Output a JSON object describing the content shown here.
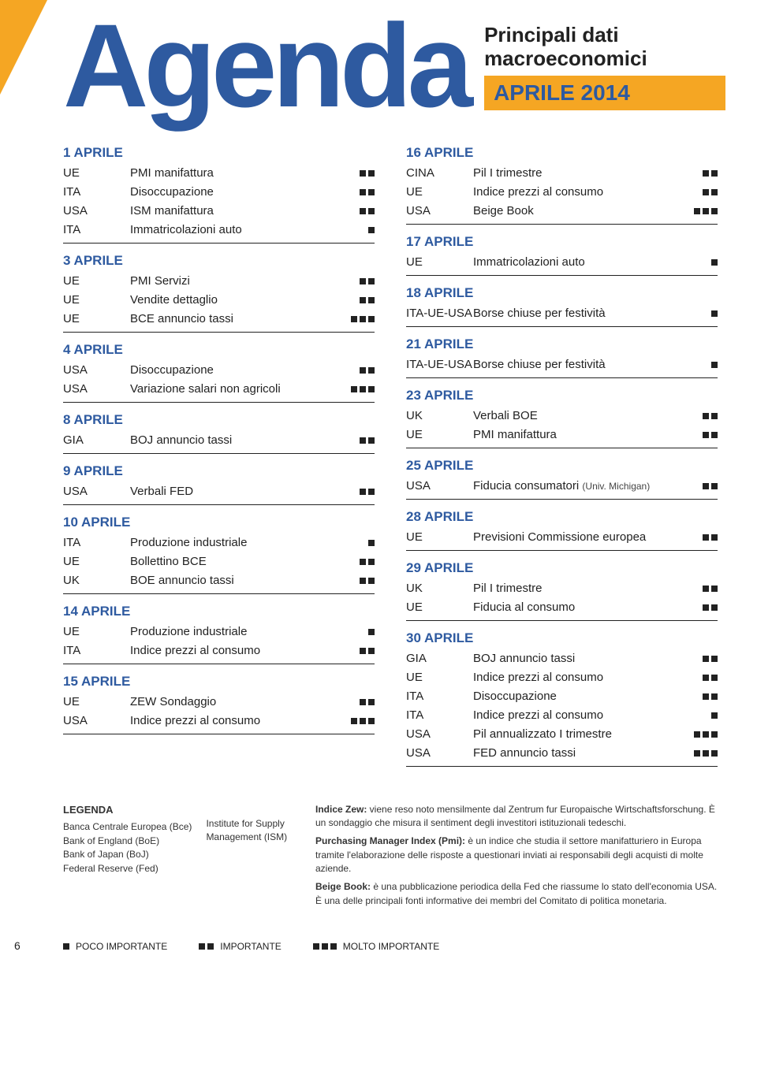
{
  "header": {
    "title": "Agenda",
    "subtitle": "Principali dati macroeconomici",
    "month": "APRILE 2014"
  },
  "colors": {
    "accent": "#f5a623",
    "primary": "#2e5aa0",
    "text": "#222222",
    "square": "#222222",
    "bg": "#ffffff"
  },
  "columns": [
    [
      {
        "date": "1 APRILE",
        "items": [
          {
            "country": "UE",
            "event": "PMI manifattura",
            "importance": 2
          },
          {
            "country": "ITA",
            "event": "Disoccupazione",
            "importance": 2
          },
          {
            "country": "USA",
            "event": "ISM manifattura",
            "importance": 2
          },
          {
            "country": "ITA",
            "event": "Immatricolazioni auto",
            "importance": 1
          }
        ]
      },
      {
        "date": "3 APRILE",
        "items": [
          {
            "country": "UE",
            "event": "PMI Servizi",
            "importance": 2
          },
          {
            "country": "UE",
            "event": "Vendite dettaglio",
            "importance": 2
          },
          {
            "country": "UE",
            "event": "BCE annuncio tassi",
            "importance": 3
          }
        ]
      },
      {
        "date": "4 APRILE",
        "items": [
          {
            "country": "USA",
            "event": "Disoccupazione",
            "importance": 2
          },
          {
            "country": "USA",
            "event": "Variazione salari non agricoli",
            "importance": 3
          }
        ]
      },
      {
        "date": "8 APRILE",
        "items": [
          {
            "country": "GIA",
            "event": "BOJ annuncio tassi",
            "importance": 2
          }
        ]
      },
      {
        "date": "9 APRILE",
        "items": [
          {
            "country": "USA",
            "event": "Verbali FED",
            "importance": 2
          }
        ]
      },
      {
        "date": "10 APRILE",
        "items": [
          {
            "country": "ITA",
            "event": "Produzione industriale",
            "importance": 1
          },
          {
            "country": "UE",
            "event": "Bollettino BCE",
            "importance": 2
          },
          {
            "country": "UK",
            "event": "BOE annuncio tassi",
            "importance": 2
          }
        ]
      },
      {
        "date": "14 APRILE",
        "items": [
          {
            "country": "UE",
            "event": "Produzione industriale",
            "importance": 1
          },
          {
            "country": "ITA",
            "event": "Indice prezzi al consumo",
            "importance": 2
          }
        ]
      },
      {
        "date": "15 APRILE",
        "items": [
          {
            "country": "UE",
            "event": "ZEW Sondaggio",
            "importance": 2
          },
          {
            "country": "USA",
            "event": "Indice prezzi al consumo",
            "importance": 3
          }
        ]
      }
    ],
    [
      {
        "date": "16 APRILE",
        "items": [
          {
            "country": "CINA",
            "event": "Pil I trimestre",
            "importance": 2
          },
          {
            "country": "UE",
            "event": "Indice prezzi al consumo",
            "importance": 2
          },
          {
            "country": "USA",
            "event": "Beige Book",
            "importance": 3
          }
        ]
      },
      {
        "date": "17 APRILE",
        "items": [
          {
            "country": "UE",
            "event": "Immatricolazioni auto",
            "importance": 1
          }
        ]
      },
      {
        "date": "18 APRILE",
        "items": [
          {
            "country": "ITA-UE-USA",
            "event": "Borse chiuse per festività",
            "importance": 1
          }
        ]
      },
      {
        "date": "21 APRILE",
        "items": [
          {
            "country": "ITA-UE-USA",
            "event": "Borse chiuse per festività",
            "importance": 1
          }
        ]
      },
      {
        "date": "23 APRILE",
        "items": [
          {
            "country": "UK",
            "event": "Verbali BOE",
            "importance": 2
          },
          {
            "country": "UE",
            "event": "PMI manifattura",
            "importance": 2
          }
        ]
      },
      {
        "date": "25 APRILE",
        "items": [
          {
            "country": "USA",
            "event": "Fiducia consumatori",
            "note": "(Univ. Michigan)",
            "importance": 2
          }
        ]
      },
      {
        "date": "28 APRILE",
        "items": [
          {
            "country": "UE",
            "event": "Previsioni Commissione europea",
            "importance": 2
          }
        ]
      },
      {
        "date": "29 APRILE",
        "items": [
          {
            "country": "UK",
            "event": "Pil I trimestre",
            "importance": 2
          },
          {
            "country": "UE",
            "event": "Fiducia al consumo",
            "importance": 2
          }
        ]
      },
      {
        "date": "30 APRILE",
        "items": [
          {
            "country": "GIA",
            "event": "BOJ annuncio tassi",
            "importance": 2
          },
          {
            "country": "UE",
            "event": "Indice prezzi al consumo",
            "importance": 2
          },
          {
            "country": "ITA",
            "event": "Disoccupazione",
            "importance": 2
          },
          {
            "country": "ITA",
            "event": "Indice prezzi al consumo",
            "importance": 1
          },
          {
            "country": "USA",
            "event": "Pil annualizzato I trimestre",
            "importance": 3
          },
          {
            "country": "USA",
            "event": "FED annuncio tassi",
            "importance": 3
          }
        ]
      }
    ]
  ],
  "legend": {
    "title": "LEGENDA",
    "left_col1": [
      "Banca Centrale Europea (Bce)",
      "Bank of England (BoE)",
      "Bank of Japan (BoJ)",
      "Federal Reserve (Fed)"
    ],
    "left_col2": [
      "Institute for Supply",
      "Management (ISM)"
    ],
    "right": [
      {
        "term": "Indice Zew:",
        "text": " viene reso noto mensilmente dal Zentrum fur Europaische Wirtschaftsforschung. È un sondaggio che misura il sentiment degli investitori istituzionali tedeschi."
      },
      {
        "term": "Purchasing Manager Index (Pmi):",
        "text": " è un indice che studia il settore manifatturiero in Europa tramite l'elaborazione delle risposte a questionari inviati ai responsabili degli acquisti di molte aziende."
      },
      {
        "term": "Beige Book:",
        "text": " è una pubblicazione periodica della Fed che riassume lo stato dell'economia USA. È una delle principali fonti informative dei membri del Comitato di politica monetaria."
      }
    ]
  },
  "importance_legend": [
    {
      "squares": 1,
      "label": "POCO IMPORTANTE"
    },
    {
      "squares": 2,
      "label": "IMPORTANTE"
    },
    {
      "squares": 3,
      "label": "MOLTO IMPORTANTE"
    }
  ],
  "page_number": "6"
}
